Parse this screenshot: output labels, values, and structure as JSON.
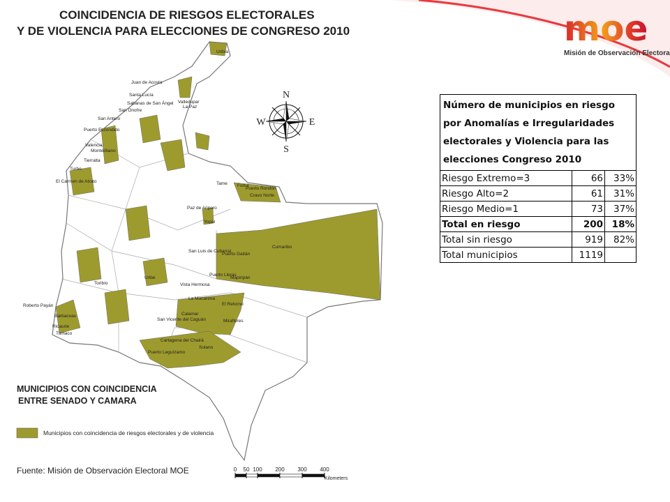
{
  "header": {
    "title_lines": [
      "COINCIDENCIA DE RIESGOS ELECTORALES",
      "Y DE VIOLENCIA PARA ELECCIONES DE CONGRESO 2010"
    ]
  },
  "logo": {
    "wordmark": "moe",
    "name": "Misión de Observación Electoral"
  },
  "compass": {
    "north": "N",
    "south": "S",
    "east": "E",
    "west": "W"
  },
  "map_labels": [
    "Uribia",
    "Juan de Acosta",
    "Santa Lucía",
    "Sabanas de San Ángel",
    "Valledupar",
    "La Paz",
    "San Onofre",
    "San Antero",
    "Puerto Escondido",
    "Montelíbano",
    "Tierralta",
    "Valencia",
    "El Carmen de Atrato",
    "Turbo",
    "Tame",
    "Fortul",
    "Puerto Rondón",
    "Cravo Norte",
    "Paz de Ariporo",
    "Yopal",
    "Cumaribo",
    "Puerto Gaitán",
    "San Luis de Cubarral",
    "Puerto Lleras",
    "Mapiripán",
    "La Macarena",
    "El Retorno",
    "Calamar",
    "Miraflores",
    "San Vicente del Caguán",
    "Cartagena del Chairá",
    "Solano",
    "Puerto Leguízamo",
    "Roberto Payán",
    "Tumaco",
    "Barbacoas",
    "Ricaurte",
    "Toribío",
    "Vista Hermosa",
    "Uribe"
  ],
  "table": {
    "heading": "Número de municipios en riesgo por Anomalías e Irregularidades electorales y Violencia para las elecciones Congreso 2010",
    "rows": [
      {
        "label": "Riesgo Extremo=3",
        "count": "66",
        "share": "33%",
        "bold": false
      },
      {
        "label": "Riesgo Alto=2",
        "count": "61",
        "share": "31%",
        "bold": false
      },
      {
        "label": "Riesgo Medio=1",
        "count": "73",
        "share": "37%",
        "bold": false
      },
      {
        "label": "Total en riesgo",
        "count": "200",
        "share": "18%",
        "bold": true
      },
      {
        "label": "Total sin riesgo",
        "count": "919",
        "share": "82%",
        "bold": false
      },
      {
        "label": "Total municipios",
        "count": "1119",
        "bold": false
      }
    ]
  },
  "legend": {
    "heading_lines": [
      "MUNICIPIOS CON COINCIDENCIA",
      "ENTRE SENADO Y CAMARA"
    ],
    "item": "Municipios con coincidencia de riesgos electorales y de violencia",
    "color": "#9e9b2e"
  },
  "source": "Fuente: Misión de Observación Electoral MOE",
  "scale": {
    "ticks": [
      0,
      50,
      100,
      200,
      300,
      400
    ],
    "unit": "Kilometers"
  }
}
